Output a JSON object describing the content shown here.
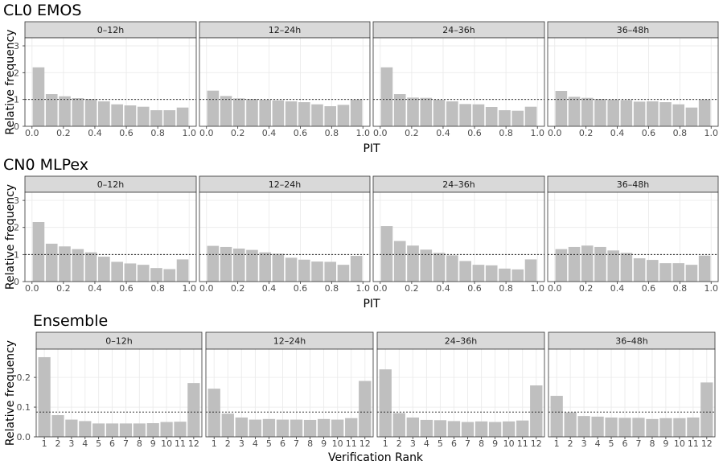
{
  "chart_data": [
    {
      "type": "bar",
      "title": "CL0 EMOS",
      "xlabel": "PIT",
      "ylabel": "Relative frequency",
      "x_ticks": [
        "0.0",
        "0.2",
        "0.4",
        "0.6",
        "0.8",
        "1.0"
      ],
      "y_ticks": [
        "0",
        "1",
        "2",
        "3"
      ],
      "xlim": [
        0,
        1
      ],
      "ylim": [
        0,
        3.3
      ],
      "reference_line": 1,
      "bin_width": 0.0833,
      "x": [
        0.0417,
        0.125,
        0.2083,
        0.2917,
        0.375,
        0.4583,
        0.5417,
        0.625,
        0.7083,
        0.7917,
        0.875,
        0.9583
      ],
      "panels": [
        {
          "label": "0–12h",
          "values": [
            2.2,
            1.2,
            1.12,
            1.05,
            1.02,
            0.93,
            0.82,
            0.78,
            0.73,
            0.6,
            0.6,
            0.7
          ]
        },
        {
          "label": "12–24h",
          "values": [
            1.33,
            1.13,
            1.04,
            1.02,
            0.99,
            0.97,
            0.93,
            0.9,
            0.82,
            0.75,
            0.8,
            1.0
          ]
        },
        {
          "label": "24–36h",
          "values": [
            2.2,
            1.2,
            1.07,
            1.06,
            0.99,
            0.93,
            0.83,
            0.82,
            0.72,
            0.6,
            0.58,
            0.73
          ]
        },
        {
          "label": "36–48h",
          "values": [
            1.32,
            1.1,
            1.06,
            1.02,
            1.0,
            0.98,
            0.92,
            0.93,
            0.9,
            0.82,
            0.7,
            1.0
          ]
        }
      ]
    },
    {
      "type": "bar",
      "title": "CN0 MLPex",
      "xlabel": "PIT",
      "ylabel": "Relative frequency",
      "x_ticks": [
        "0.0",
        "0.2",
        "0.4",
        "0.6",
        "0.8",
        "1.0"
      ],
      "y_ticks": [
        "0",
        "1",
        "2",
        "3"
      ],
      "xlim": [
        0,
        1
      ],
      "ylim": [
        0,
        3.3
      ],
      "reference_line": 1,
      "bin_width": 0.0833,
      "x": [
        0.0417,
        0.125,
        0.2083,
        0.2917,
        0.375,
        0.4583,
        0.5417,
        0.625,
        0.7083,
        0.7917,
        0.875,
        0.9583
      ],
      "panels": [
        {
          "label": "0–12h",
          "values": [
            2.2,
            1.4,
            1.3,
            1.2,
            1.08,
            0.92,
            0.73,
            0.67,
            0.62,
            0.5,
            0.46,
            0.82
          ]
        },
        {
          "label": "12–24h",
          "values": [
            1.32,
            1.28,
            1.22,
            1.17,
            1.08,
            1.03,
            0.88,
            0.81,
            0.74,
            0.73,
            0.62,
            0.95
          ]
        },
        {
          "label": "24–36h",
          "values": [
            2.05,
            1.5,
            1.33,
            1.18,
            1.06,
            0.97,
            0.76,
            0.62,
            0.6,
            0.48,
            0.45,
            0.82
          ]
        },
        {
          "label": "36–48h",
          "values": [
            1.2,
            1.28,
            1.33,
            1.28,
            1.15,
            1.06,
            0.86,
            0.8,
            0.68,
            0.68,
            0.62,
            0.96
          ]
        }
      ]
    },
    {
      "type": "bar",
      "title": "Ensemble",
      "xlabel": "Verification Rank",
      "ylabel": "Relative frequency",
      "categories": [
        "1",
        "2",
        "3",
        "4",
        "5",
        "6",
        "7",
        "8",
        "9",
        "10",
        "11",
        "12"
      ],
      "y_ticks": [
        "0.0",
        "0.1",
        "0.2"
      ],
      "y_tick_values": [
        0,
        0.1,
        0.2
      ],
      "ylim": [
        0,
        0.295
      ],
      "reference_line": 0.0833,
      "panels": [
        {
          "label": "0–12h",
          "values": [
            0.268,
            0.073,
            0.058,
            0.053,
            0.045,
            0.045,
            0.045,
            0.045,
            0.046,
            0.05,
            0.051,
            0.181
          ]
        },
        {
          "label": "12–24h",
          "values": [
            0.162,
            0.078,
            0.065,
            0.058,
            0.06,
            0.058,
            0.058,
            0.057,
            0.06,
            0.058,
            0.063,
            0.188
          ]
        },
        {
          "label": "24–36h",
          "values": [
            0.227,
            0.08,
            0.065,
            0.057,
            0.056,
            0.053,
            0.05,
            0.052,
            0.05,
            0.052,
            0.055,
            0.173
          ]
        },
        {
          "label": "36–48h",
          "values": [
            0.138,
            0.082,
            0.07,
            0.068,
            0.065,
            0.064,
            0.064,
            0.06,
            0.063,
            0.063,
            0.065,
            0.183
          ]
        }
      ]
    }
  ]
}
